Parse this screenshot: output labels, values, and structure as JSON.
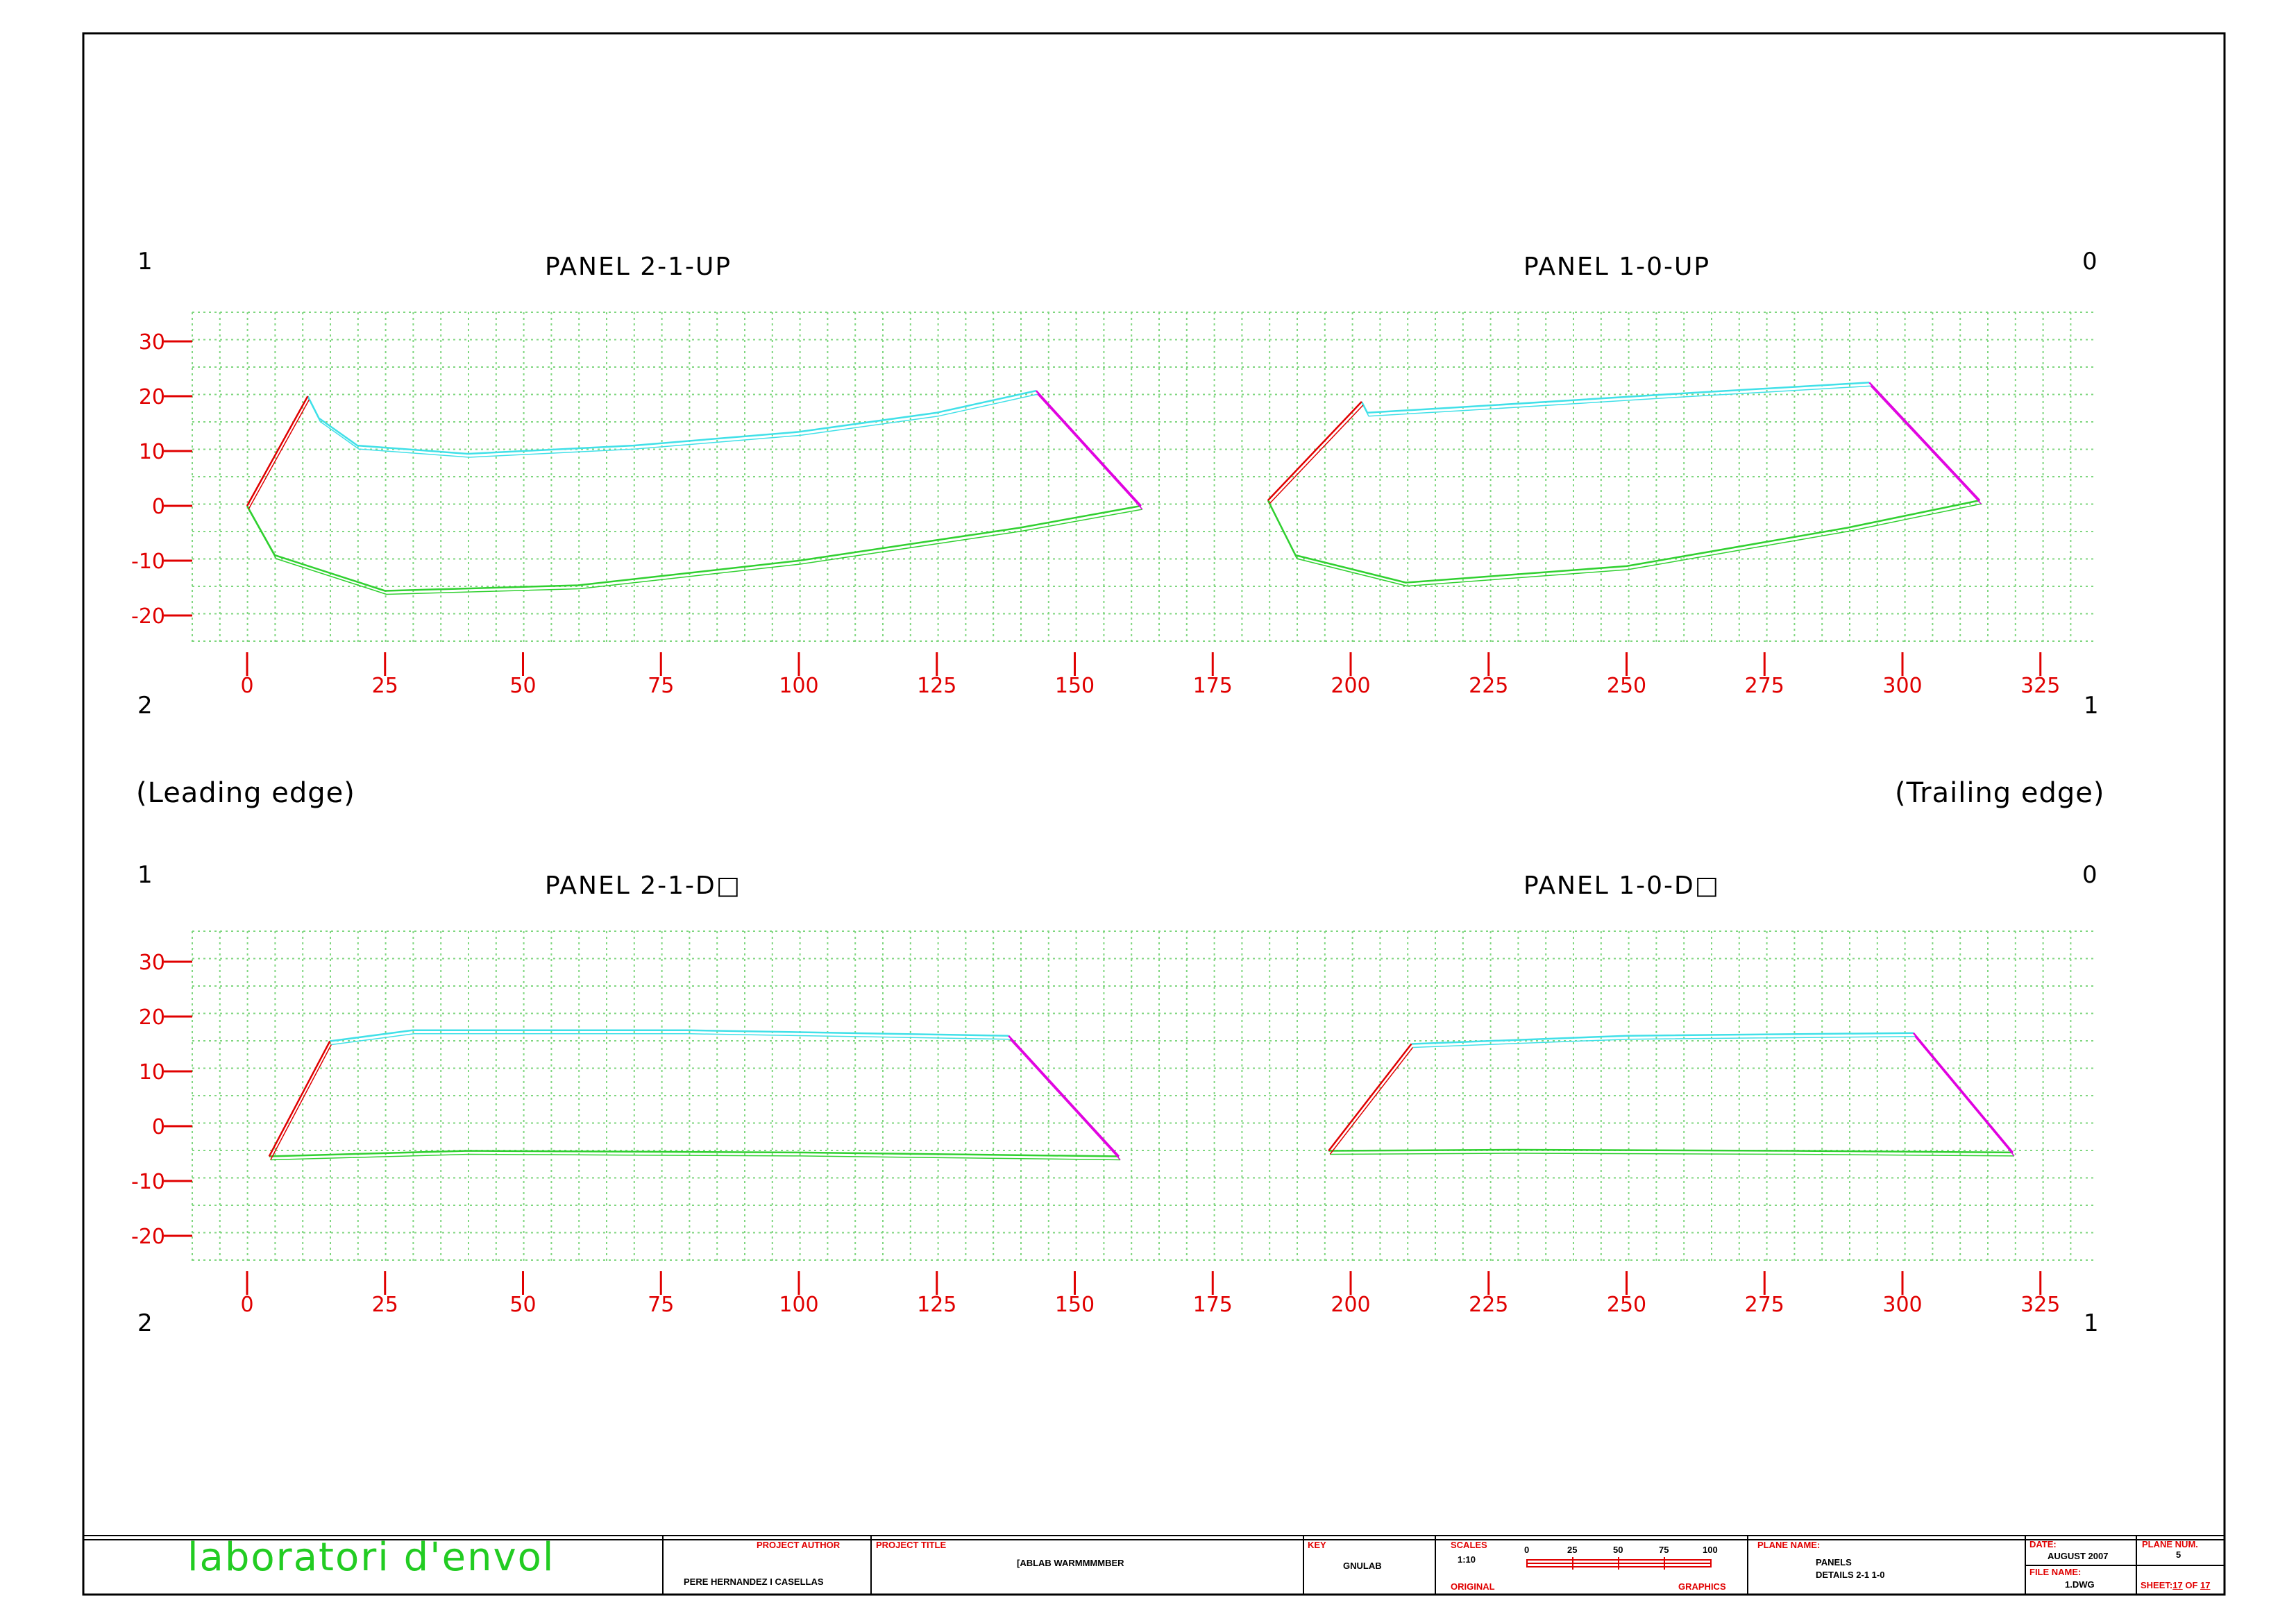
{
  "colors": {
    "grid": "#7fd67f",
    "axis": "#e00000",
    "upper_curve": "#40e0e8",
    "lower_curve": "#30d030",
    "leading_segment": "#e00000",
    "trailing_segment": "#e000e0",
    "frame": "#000000",
    "logo": "#22cc22"
  },
  "labels": {
    "leading_edge": "(Leading edge)",
    "trailing_edge": "(Trailing edge)"
  },
  "rows": [
    {
      "corners": {
        "top_left": "1",
        "bottom_left": "2",
        "top_right": "0",
        "bottom_right": "1"
      },
      "panels": [
        {
          "title": "PANEL 2-1-UP"
        },
        {
          "title": "PANEL 1-0-UP"
        }
      ]
    },
    {
      "corners": {
        "top_left": "1",
        "bottom_left": "2",
        "top_right": "0",
        "bottom_right": "1"
      },
      "panels": [
        {
          "title": "PANEL 2-1-D□"
        },
        {
          "title": "PANEL 1-0-D□"
        }
      ]
    }
  ],
  "chart_data": [
    {
      "type": "line",
      "title": "PANEL 2-1-UP",
      "xlim": [
        -10,
        335
      ],
      "ylim": [
        -25,
        35
      ],
      "x_ticks": [
        0,
        25,
        50,
        75,
        100,
        125,
        150,
        175,
        200,
        225,
        250,
        275,
        300,
        325
      ],
      "y_ticks": [
        30,
        20,
        10,
        0,
        -10,
        -20
      ],
      "grid": true,
      "series": [
        {
          "values": [
            [
              11,
              20
            ],
            [
              13,
              16
            ],
            [
              20,
              11
            ],
            [
              40,
              9.5
            ],
            [
              70,
              11
            ],
            [
              100,
              13.5
            ],
            [
              125,
              17
            ],
            [
              143,
              21
            ]
          ]
        },
        {
          "values": [
            [
              0,
              0
            ],
            [
              5,
              -9
            ],
            [
              25,
              -15.5
            ],
            [
              60,
              -14.5
            ],
            [
              100,
              -10
            ],
            [
              140,
              -4
            ],
            [
              162,
              0
            ]
          ]
        },
        {
          "values": [
            [
              0,
              0
            ],
            [
              11,
              20
            ]
          ]
        },
        {
          "values": [
            [
              143,
              21
            ],
            [
              162,
              0
            ]
          ]
        }
      ]
    },
    {
      "type": "line",
      "title": "PANEL 1-0-UP",
      "xlim": [
        -10,
        335
      ],
      "ylim": [
        -25,
        35
      ],
      "x_ticks": [
        0,
        25,
        50,
        75,
        100,
        125,
        150,
        175,
        200,
        225,
        250,
        275,
        300,
        325
      ],
      "y_ticks": [
        30,
        20,
        10,
        0,
        -10,
        -20
      ],
      "grid": true,
      "series": [
        {
          "values": [
            [
              202,
              19
            ],
            [
              203,
              17
            ],
            [
              220,
              18
            ],
            [
              260,
              20.5
            ],
            [
              294,
              22.5
            ]
          ]
        },
        {
          "values": [
            [
              185,
              1
            ],
            [
              190,
              -9
            ],
            [
              210,
              -14
            ],
            [
              250,
              -11
            ],
            [
              290,
              -4
            ],
            [
              314,
              1
            ]
          ]
        },
        {
          "values": [
            [
              185,
              1
            ],
            [
              202,
              19
            ]
          ]
        },
        {
          "values": [
            [
              294,
              22.5
            ],
            [
              314,
              1
            ]
          ]
        }
      ]
    },
    {
      "type": "line",
      "title": "PANEL 2-1-D□",
      "xlim": [
        -10,
        335
      ],
      "ylim": [
        -25,
        35
      ],
      "x_ticks": [
        0,
        25,
        50,
        75,
        100,
        125,
        150,
        175,
        200,
        225,
        250,
        275,
        300,
        325
      ],
      "y_ticks": [
        30,
        20,
        10,
        0,
        -10,
        -20
      ],
      "grid": true,
      "series": [
        {
          "values": [
            [
              15,
              15.5
            ],
            [
              30,
              17.5
            ],
            [
              80,
              17.5
            ],
            [
              138,
              16.5
            ]
          ]
        },
        {
          "values": [
            [
              4,
              -5.5
            ],
            [
              40,
              -4.5
            ],
            [
              100,
              -4.8
            ],
            [
              158,
              -5.5
            ]
          ]
        },
        {
          "values": [
            [
              4,
              -5.5
            ],
            [
              15,
              15.5
            ]
          ]
        },
        {
          "values": [
            [
              138,
              16.5
            ],
            [
              158,
              -5.5
            ]
          ]
        }
      ]
    },
    {
      "type": "line",
      "title": "PANEL 1-0-D□",
      "xlim": [
        -10,
        335
      ],
      "ylim": [
        -25,
        35
      ],
      "x_ticks": [
        0,
        25,
        50,
        75,
        100,
        125,
        150,
        175,
        200,
        225,
        250,
        275,
        300,
        325
      ],
      "y_ticks": [
        30,
        20,
        10,
        0,
        -10,
        -20
      ],
      "grid": true,
      "series": [
        {
          "values": [
            [
              211,
              15
            ],
            [
              250,
              16.5
            ],
            [
              302,
              17
            ]
          ]
        },
        {
          "values": [
            [
              196,
              -4.5
            ],
            [
              230,
              -4.3
            ],
            [
              280,
              -4.5
            ],
            [
              320,
              -4.8
            ]
          ]
        },
        {
          "values": [
            [
              196,
              -4.5
            ],
            [
              211,
              15
            ]
          ]
        },
        {
          "values": [
            [
              302,
              17
            ],
            [
              320,
              -4.8
            ]
          ]
        }
      ]
    }
  ],
  "title_block": {
    "logo": "laboratori d'envol",
    "project_author_label": "PROJECT AUTHOR",
    "project_author": "PERE HERNANDEZ I CASELLAS",
    "project_title_label": "PROJECT TITLE",
    "project_title": "[ABLAB WARMMMMBER",
    "key_label": "KEY",
    "key": "GNULAB",
    "scales_label": "SCALES",
    "scale": "1:10",
    "scale_ticks": [
      "0",
      "25",
      "50",
      "75",
      "100"
    ],
    "original_label": "ORIGINAL",
    "graphics_label": "GRAPHICS",
    "plane_name_label": "PLANE NAME:",
    "plane_name_line1": "PANELS",
    "plane_name_line2": "DETAILS 2-1 1-0",
    "date_label": "DATE:",
    "date": "AUGUST 2007",
    "plane_num_label": "PLANE NUM.",
    "plane_num": "5",
    "file_name_label": "FILE NAME:",
    "file_name": "1.DWG",
    "sheet_label": "SHEET",
    "sheet_num": "17",
    "sheet_of": "OF",
    "sheet_total": "17"
  }
}
